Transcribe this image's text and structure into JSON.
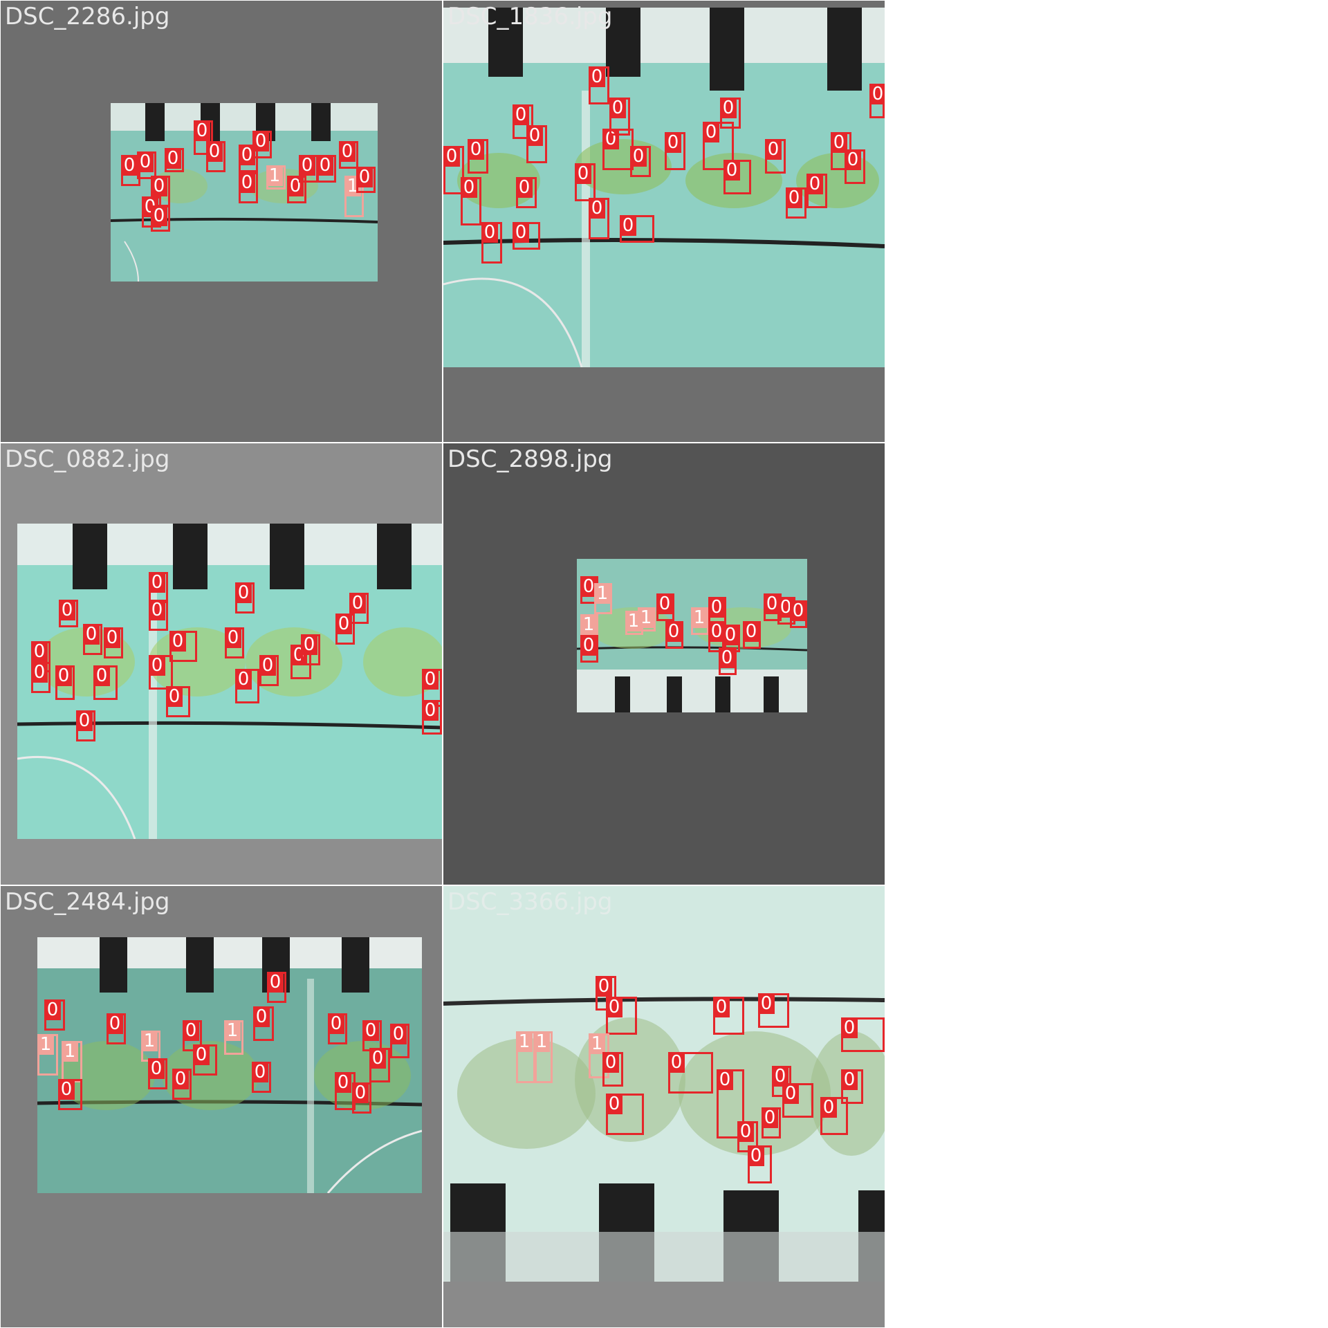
{
  "tiles": [
    {
      "filename": "DSC_2286.jpg",
      "label_color": "#e8e8e8"
    },
    {
      "filename": "DSC_1836.jpg",
      "label_color": "#e8e8e8"
    },
    {
      "filename": "DSC_0882.jpg",
      "label_color": "#e8e8e8"
    },
    {
      "filename": "DSC_2898.jpg",
      "label_color": "#e8e8e8"
    },
    {
      "filename": "DSC_2484.jpg",
      "label_color": "#e8e8e8"
    },
    {
      "filename": "DSC_3366.jpg",
      "label_color": "#e8e8e8"
    }
  ],
  "classes": {
    "0": {
      "text": "0",
      "color": "#e5262a"
    },
    "1": {
      "text": "1",
      "color": "#f2a39a"
    }
  }
}
